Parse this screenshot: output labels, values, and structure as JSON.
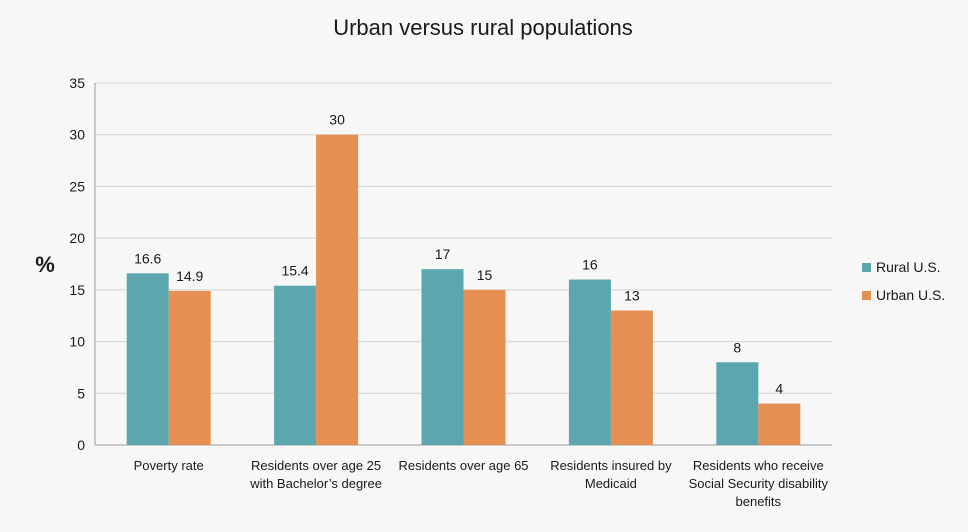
{
  "chart_data": {
    "type": "bar",
    "title": "Urban versus rural populations",
    "xlabel": "",
    "ylabel": "%",
    "ylim": [
      0,
      35
    ],
    "yticks": [
      0,
      5,
      10,
      15,
      20,
      25,
      30,
      35
    ],
    "grid": true,
    "legend_position": "right",
    "categories": [
      [
        "Poverty rate"
      ],
      [
        "Residents over age 25",
        "with Bachelor’s degree"
      ],
      [
        "Residents over age 65"
      ],
      [
        "Residents insured by",
        "Medicaid"
      ],
      [
        "Residents who receive",
        "Social Security disability",
        "benefits"
      ]
    ],
    "series": [
      {
        "name": "Rural U.S.",
        "color": "#5ba7ad",
        "values": [
          16.6,
          15.4,
          17,
          16,
          8
        ]
      },
      {
        "name": "Urban U.S.",
        "color": "#e58f52",
        "values": [
          14.9,
          30,
          15,
          13,
          4
        ]
      }
    ]
  }
}
